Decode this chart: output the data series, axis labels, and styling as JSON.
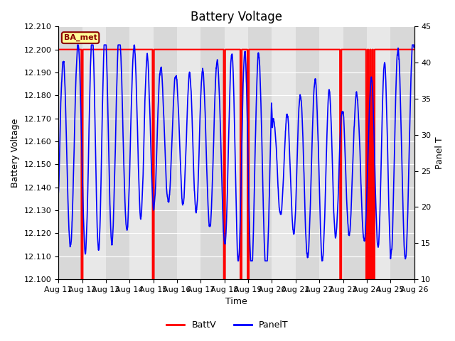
{
  "title": "Battery Voltage",
  "xlabel": "Time",
  "ylabel_left": "Battery Voltage",
  "ylabel_right": "Panel T",
  "ylim_left": [
    12.1,
    12.21
  ],
  "ylim_right": [
    10,
    45
  ],
  "xlim": [
    0,
    15
  ],
  "x_tick_labels": [
    "Aug 11",
    "Aug 12",
    "Aug 13",
    "Aug 14",
    "Aug 15",
    "Aug 16",
    "Aug 17",
    "Aug 18",
    "Aug 19",
    "Aug 20",
    "Aug 21",
    "Aug 22",
    "Aug 23",
    "Aug 24",
    "Aug 25",
    "Aug 26"
  ],
  "x_tick_positions": [
    0,
    1,
    2,
    3,
    4,
    5,
    6,
    7,
    8,
    9,
    10,
    11,
    12,
    13,
    14,
    15
  ],
  "background_color": "#ffffff",
  "plot_bg_color": "#e8e8e8",
  "band_color_light": "#d8d8d8",
  "red_spike_positions": [
    1.0,
    4.0,
    7.0,
    7.7,
    8.0,
    11.9,
    13.0,
    13.1,
    13.2,
    13.3
  ],
  "station_label": "BA_met",
  "station_label_bg": "#ffff99",
  "station_label_border": "#8b0000",
  "battv_color": "#ff0000",
  "panelt_color": "#0000ff",
  "title_fontsize": 12,
  "axis_label_fontsize": 9,
  "tick_fontsize": 8
}
